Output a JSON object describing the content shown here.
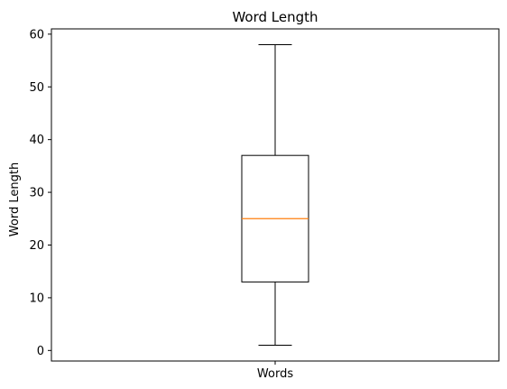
{
  "chart_data": {
    "type": "box",
    "title": "Word Length",
    "xlabel": "",
    "ylabel": "Word Length",
    "categories": [
      "Words"
    ],
    "ylim": [
      -2,
      61
    ],
    "yticks": [
      0,
      10,
      20,
      30,
      40,
      50,
      60
    ],
    "grid": false,
    "boxes": [
      {
        "category": "Words",
        "whisker_low": 1,
        "q1": 13,
        "median": 25,
        "q3": 37,
        "whisker_high": 58
      }
    ],
    "colors": {
      "box": "#000000",
      "median": "#ff7f0e"
    }
  }
}
